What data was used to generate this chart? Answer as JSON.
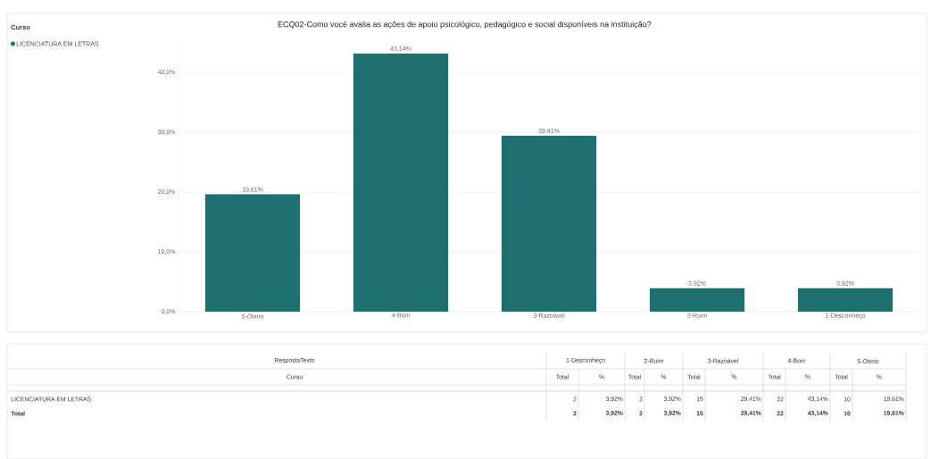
{
  "chart_data": [
    {
      "type": "bar",
      "title": "ECQ02-Como você avalia as ações de apoio psicológico, pedagógico e social disponíveis na instituição?",
      "legend_title": "Curso",
      "legend": "top left",
      "grid": "y",
      "categories": [
        "5-Ótimo",
        "4-Bom",
        "3-Razoável",
        "2-Ruim",
        "1-Desconheço"
      ],
      "series": [
        {
          "name": "LICENCIATURA EM LETRAS",
          "color": "#1f6f6f",
          "values": [
            19.61,
            43.14,
            29.41,
            3.92,
            3.92
          ],
          "value_labels": [
            "19,61%",
            "43,14%",
            "29,41%",
            "3,92%",
            "3,92%"
          ]
        }
      ],
      "ylim": [
        0,
        45
      ],
      "yticks": [
        {
          "value": 0,
          "label": "0,0%"
        },
        {
          "value": 10,
          "label": "10,0%"
        },
        {
          "value": 20,
          "label": "20,0%"
        },
        {
          "value": 30,
          "label": "30,0%"
        },
        {
          "value": 40,
          "label": "40,0%"
        }
      ]
    },
    {
      "type": "other",
      "annotations": [
        "RespostaTexto",
        "1-Desconheço",
        "2-Ruim",
        "3-Razoável",
        "4-Bom",
        "5-Ótimo",
        "Curso",
        "Total",
        "%",
        "Total",
        "%",
        "Total",
        "%",
        "Total",
        "%",
        "Total",
        "%",
        "LICENCIATURA EM LETRAS",
        "2",
        "3,92%",
        "2",
        "3,92%",
        "15",
        "29,41%",
        "22",
        "43,14%",
        "10",
        "19,61%",
        "Total",
        "2",
        "3,92%",
        "2",
        "3,92%",
        "15",
        "29,41%",
        "22",
        "43,14%",
        "10",
        "19,61%"
      ]
    }
  ]
}
